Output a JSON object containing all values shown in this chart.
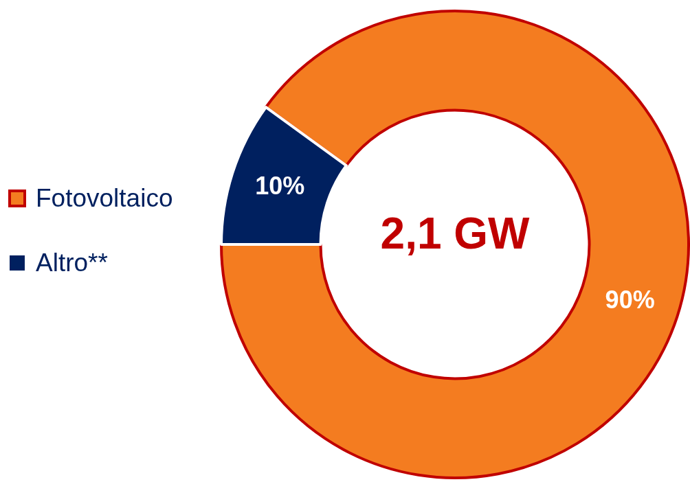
{
  "chart_data": {
    "type": "donut",
    "categories": [
      "Fotovoltaico",
      "Altro**"
    ],
    "values": [
      90,
      10
    ],
    "colors": [
      "#f47c20",
      "#00205f"
    ],
    "value_labels": [
      "90%",
      "10%"
    ],
    "annotations": [
      "2,1 GW"
    ],
    "legend": "left"
  }
}
